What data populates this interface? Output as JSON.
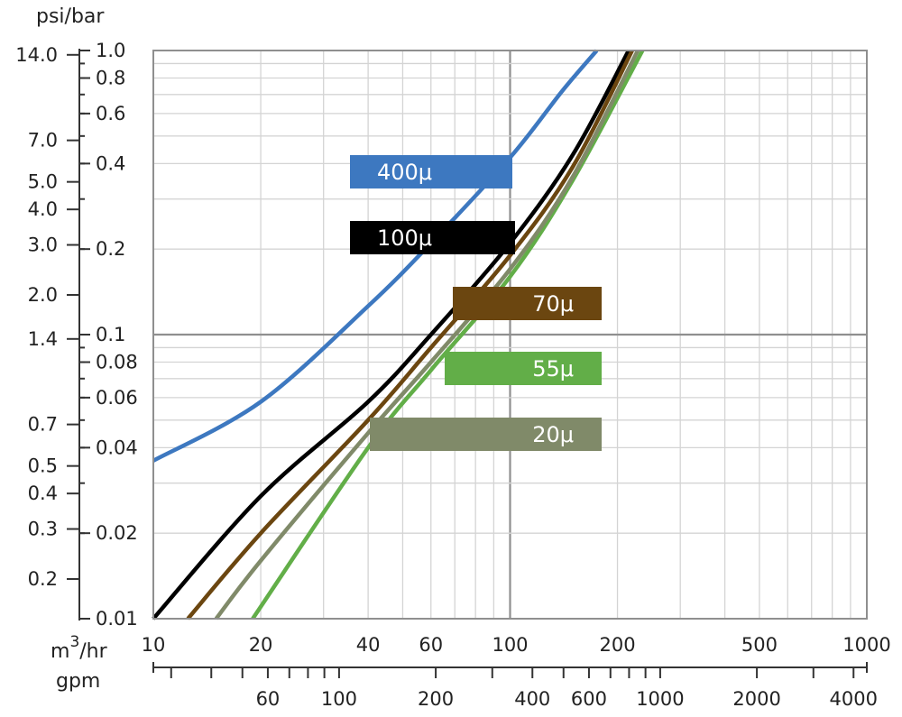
{
  "chart_data": {
    "type": "line",
    "x_scale": "log",
    "y_scale": "log",
    "xlim": [
      10,
      1000
    ],
    "ylim": [
      0.01,
      1.0
    ],
    "grid": true,
    "y_unit_label": "psi/bar",
    "x_unit_label_m3": "m",
    "x_unit_label_sup": "3",
    "x_unit_label_hr": "/hr",
    "x_unit_label_gpm": "gpm",
    "x_ticks_m3hr": [
      {
        "value": 10,
        "label": "10"
      },
      {
        "value": 20,
        "label": "20"
      },
      {
        "value": 40,
        "label": "40"
      },
      {
        "value": 60,
        "label": "60"
      },
      {
        "value": 100,
        "label": "100"
      },
      {
        "value": 200,
        "label": "200"
      },
      {
        "value": 500,
        "label": "500"
      },
      {
        "value": 1000,
        "label": "1000"
      }
    ],
    "x_ticks_gpm": [
      {
        "value": 60,
        "label": "60"
      },
      {
        "value": 100,
        "label": "100"
      },
      {
        "value": 200,
        "label": "200"
      },
      {
        "value": 400,
        "label": "400"
      },
      {
        "value": 600,
        "label": "600"
      },
      {
        "value": 1000,
        "label": "1000"
      },
      {
        "value": 2000,
        "label": "2000"
      },
      {
        "value": 4000,
        "label": "4000"
      }
    ],
    "y_ticks_bar": [
      {
        "value": 1.0,
        "label": "1.0"
      },
      {
        "value": 0.8,
        "label": "0.8"
      },
      {
        "value": 0.6,
        "label": "0.6"
      },
      {
        "value": 0.4,
        "label": "0.4"
      },
      {
        "value": 0.2,
        "label": "0.2"
      },
      {
        "value": 0.1,
        "label": "0.1"
      },
      {
        "value": 0.08,
        "label": "0.08"
      },
      {
        "value": 0.06,
        "label": "0.06"
      },
      {
        "value": 0.04,
        "label": "0.04"
      },
      {
        "value": 0.02,
        "label": "0.02"
      },
      {
        "value": 0.01,
        "label": "0.01"
      }
    ],
    "y_ticks_psi": [
      {
        "value": 14.0,
        "label": "14.0"
      },
      {
        "value": 7.0,
        "label": "7.0"
      },
      {
        "value": 5.0,
        "label": "5.0"
      },
      {
        "value": 4.0,
        "label": "4.0"
      },
      {
        "value": 3.0,
        "label": "3.0"
      },
      {
        "value": 2.0,
        "label": "2.0"
      },
      {
        "value": 1.4,
        "label": "1.4"
      },
      {
        "value": 0.7,
        "label": "0.7"
      },
      {
        "value": 0.5,
        "label": "0.5"
      },
      {
        "value": 0.4,
        "label": "0.4"
      },
      {
        "value": 0.3,
        "label": "0.3"
      },
      {
        "value": 0.2,
        "label": "0.2"
      }
    ],
    "series": [
      {
        "name": "400μ",
        "color": "#3d78c0",
        "points": [
          [
            10,
            0.036
          ],
          [
            20,
            0.058
          ],
          [
            40,
            0.126
          ],
          [
            60,
            0.21
          ],
          [
            100,
            0.42
          ],
          [
            140,
            0.72
          ],
          [
            175,
            1.0
          ]
        ]
      },
      {
        "name": "100μ",
        "color": "#000000",
        "points": [
          [
            10,
            0.01
          ],
          [
            20,
            0.027
          ],
          [
            40,
            0.058
          ],
          [
            60,
            0.1
          ],
          [
            100,
            0.21
          ],
          [
            150,
            0.43
          ],
          [
            215,
            1.0
          ]
        ]
      },
      {
        "name": "70μ",
        "color": "#6b4610",
        "points": [
          [
            12.5,
            0.01
          ],
          [
            20,
            0.02
          ],
          [
            40,
            0.05
          ],
          [
            60,
            0.09
          ],
          [
            100,
            0.19
          ],
          [
            150,
            0.39
          ],
          [
            220,
            1.0
          ]
        ]
      },
      {
        "name": "55μ",
        "color": "#62ae48",
        "points": [
          [
            19,
            0.01
          ],
          [
            40,
            0.04
          ],
          [
            60,
            0.075
          ],
          [
            100,
            0.16
          ],
          [
            150,
            0.35
          ],
          [
            235,
            1.0
          ]
        ]
      },
      {
        "name": "20μ",
        "color": "#808a69",
        "points": [
          [
            15,
            0.01
          ],
          [
            20,
            0.016
          ],
          [
            40,
            0.045
          ],
          [
            60,
            0.08
          ],
          [
            100,
            0.17
          ],
          [
            150,
            0.36
          ],
          [
            228,
            1.0
          ]
        ]
      }
    ]
  }
}
